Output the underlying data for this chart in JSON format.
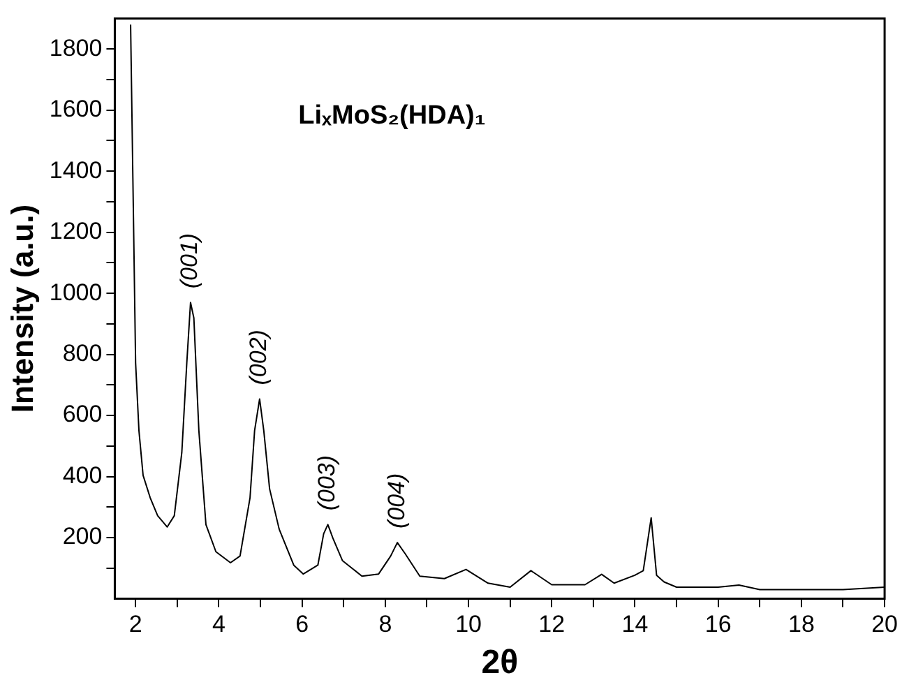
{
  "chart_data": {
    "type": "line",
    "xlabel": "2θ",
    "ylabel": "Intensity (a.u.)",
    "annotations": [
      "LiₓMoS₂(HDA)₁",
      {
        "text": "(001)",
        "x": 3.32,
        "y": 970
      },
      {
        "text": "(002)",
        "x": 4.98,
        "y": 654
      },
      {
        "text": "(003)",
        "x": 6.62,
        "y": 243
      },
      {
        "text": "(004)",
        "x": 8.29,
        "y": 184
      }
    ],
    "series": [
      {
        "color": "#000000",
        "x": [
          1.88,
          2.0,
          2.08,
          2.18,
          2.35,
          2.53,
          2.76,
          2.93,
          3.11,
          3.23,
          3.32,
          3.4,
          3.52,
          3.69,
          3.93,
          4.28,
          4.51,
          4.75,
          4.86,
          4.98,
          5.08,
          5.22,
          5.45,
          5.8,
          6.03,
          6.38,
          6.52,
          6.62,
          6.74,
          6.97,
          7.44,
          7.84,
          8.13,
          8.29,
          8.48,
          8.83,
          9.42,
          9.94,
          10.47,
          11.0,
          11.5,
          12.0,
          12.8,
          13.2,
          13.5,
          14.0,
          14.2,
          14.39,
          14.52,
          14.7,
          15.0,
          16.0,
          16.5,
          17.0,
          18.0,
          19.0,
          20.0
        ],
        "values": [
          1880,
          772,
          551,
          404,
          331,
          272,
          235,
          272,
          478,
          772,
          970,
          919,
          551,
          243,
          154,
          118,
          140,
          331,
          551,
          654,
          551,
          360,
          228,
          110,
          81,
          110,
          213,
          243,
          199,
          125,
          74,
          81,
          140,
          184,
          147,
          74,
          66,
          96,
          51,
          38,
          92,
          46,
          46,
          80,
          51,
          77,
          92,
          265,
          77,
          55,
          38,
          38,
          45,
          30,
          30,
          30,
          38
        ]
      }
    ],
    "xlim": [
      1.5,
      20
    ],
    "xticks": [
      2,
      {
        "value": 3,
        "label": null
      },
      4,
      {
        "value": 5,
        "label": null
      },
      6,
      {
        "value": 7,
        "label": null
      },
      8,
      {
        "value": 9,
        "label": null
      },
      10,
      {
        "value": 11,
        "label": null
      },
      12,
      {
        "value": 13,
        "label": null
      },
      14,
      {
        "value": 15,
        "label": null
      },
      16,
      {
        "value": 17,
        "label": null
      },
      18,
      {
        "value": 19,
        "label": null
      },
      20
    ],
    "ylim": [
      0,
      1900
    ],
    "yticks": [
      {
        "value": 100,
        "label": null
      },
      200,
      {
        "value": 300,
        "label": null
      },
      400,
      {
        "value": 500,
        "label": null
      },
      600,
      {
        "value": 700,
        "label": null
      },
      800,
      {
        "value": 900,
        "label": null
      },
      1000,
      {
        "value": 1100,
        "label": null
      },
      1200,
      {
        "value": 1300,
        "label": null
      },
      1400,
      {
        "value": 1500,
        "label": null
      },
      1600,
      {
        "value": 1700,
        "label": null
      },
      1800
    ],
    "grid": false,
    "legend": false,
    "marker": "none",
    "line_style": "solid"
  }
}
